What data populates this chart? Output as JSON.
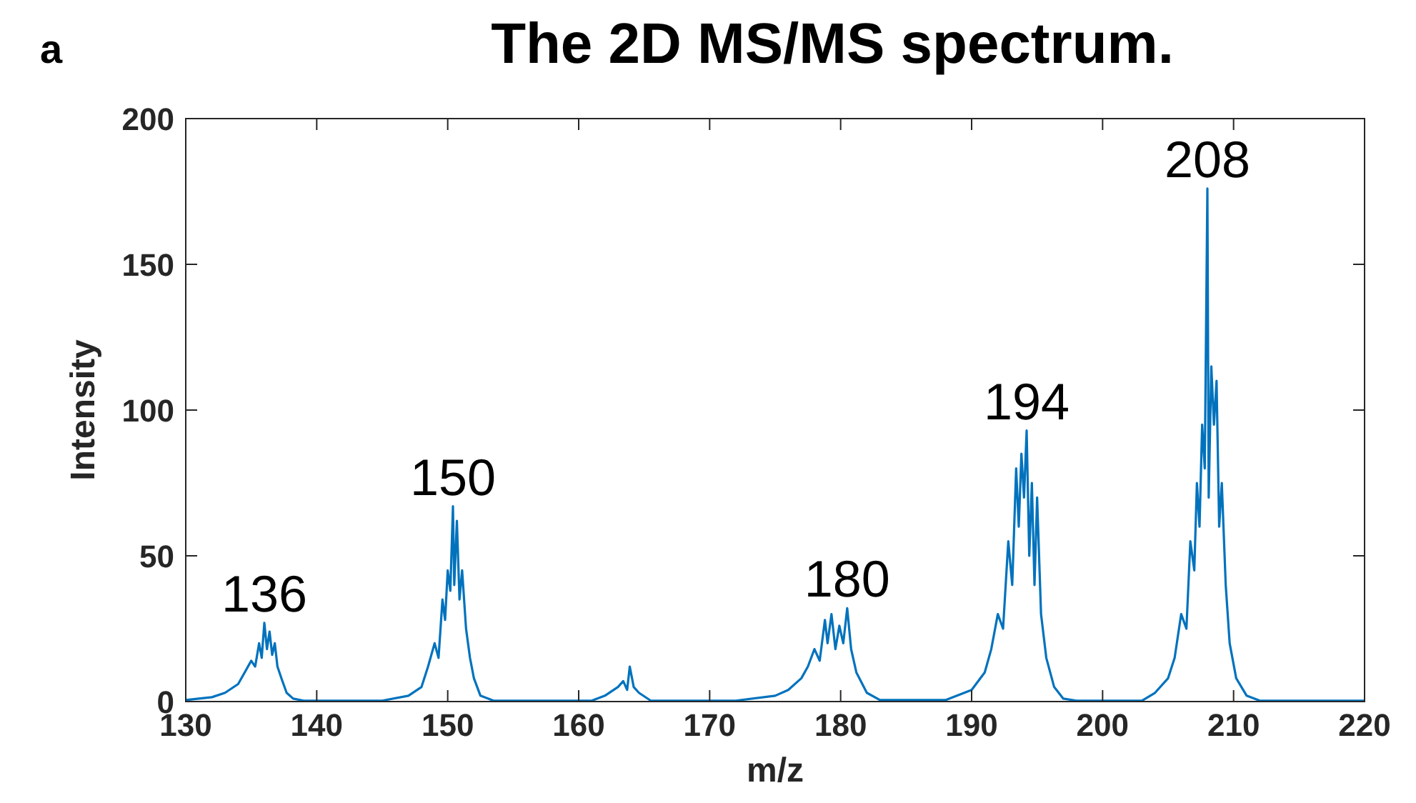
{
  "chart_data": {
    "type": "line",
    "title": "The 2D MS/MS spectrum.",
    "xlabel": "m/z",
    "ylabel": "Intensity",
    "annotations": [
      "a",
      {
        "text": "136",
        "x": 136,
        "y": 27
      },
      {
        "text": "150",
        "x": 150.4,
        "y": 67
      },
      {
        "text": "180",
        "x": 180.5,
        "y": 32
      },
      {
        "text": "194",
        "x": 194.2,
        "y": 93
      },
      {
        "text": "208",
        "x": 208,
        "y": 176
      }
    ],
    "xlim": [
      130,
      220
    ],
    "xticks": [
      130,
      140,
      150,
      160,
      170,
      180,
      190,
      200,
      210,
      220
    ],
    "ylim": [
      0,
      200
    ],
    "yticks": [
      0,
      50,
      100,
      150,
      200
    ],
    "grid": false,
    "line_style": "solid",
    "series": [
      {
        "color": "#0072bd",
        "x": [
          130,
          132,
          133,
          134,
          134.5,
          135,
          135.3,
          135.6,
          135.8,
          136,
          136.2,
          136.4,
          136.6,
          136.8,
          137,
          137.3,
          137.7,
          138.2,
          139,
          145,
          147,
          148,
          148.5,
          149,
          149.3,
          149.6,
          149.8,
          150,
          150.2,
          150.4,
          150.5,
          150.7,
          150.9,
          151.1,
          151.4,
          151.7,
          152,
          152.5,
          153.5,
          161,
          162,
          163,
          163.4,
          163.7,
          163.9,
          164.2,
          164.6,
          165.5,
          172,
          175,
          176,
          177,
          177.5,
          178,
          178.4,
          178.8,
          179,
          179.3,
          179.6,
          179.9,
          180.2,
          180.5,
          180.8,
          181.2,
          182,
          183,
          188,
          190,
          191,
          191.5,
          192,
          192.4,
          192.8,
          193.1,
          193.4,
          193.6,
          193.8,
          194,
          194.2,
          194.4,
          194.6,
          194.8,
          195,
          195.3,
          195.7,
          196.3,
          197,
          198,
          203,
          204,
          205,
          205.5,
          206,
          206.4,
          206.7,
          207,
          207.2,
          207.4,
          207.6,
          207.8,
          208,
          208.1,
          208.3,
          208.5,
          208.7,
          208.9,
          209.1,
          209.4,
          209.7,
          210.2,
          211,
          212,
          220
        ],
        "values": [
          0.5,
          1.5,
          3,
          6,
          10,
          14,
          12,
          20,
          15,
          27,
          18,
          24,
          16,
          20,
          12,
          8,
          3,
          1,
          0.3,
          0.3,
          2,
          5,
          12,
          20,
          15,
          35,
          28,
          45,
          38,
          67,
          40,
          62,
          35,
          45,
          25,
          15,
          8,
          2,
          0.3,
          0.3,
          2,
          5,
          7,
          4,
          12,
          5,
          3,
          0.3,
          0.3,
          2,
          4,
          8,
          12,
          18,
          14,
          28,
          20,
          30,
          18,
          26,
          20,
          32,
          18,
          10,
          3,
          0.5,
          0.5,
          4,
          10,
          18,
          30,
          25,
          55,
          40,
          80,
          60,
          85,
          70,
          93,
          50,
          75,
          40,
          70,
          30,
          15,
          5,
          1,
          0.3,
          0.3,
          3,
          8,
          15,
          30,
          25,
          55,
          45,
          75,
          60,
          95,
          80,
          176,
          70,
          115,
          95,
          110,
          60,
          75,
          40,
          20,
          8,
          2,
          0.3,
          0.3
        ]
      }
    ]
  }
}
